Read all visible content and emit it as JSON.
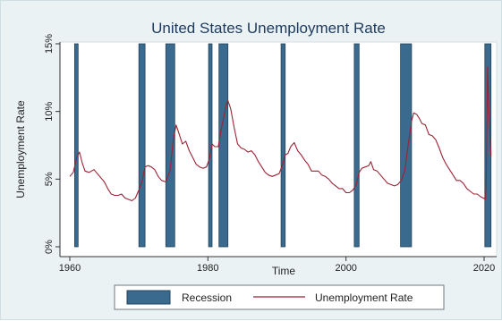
{
  "chart_data": {
    "type": "line",
    "title": "United States Unemployment Rate",
    "xlabel": "Time",
    "ylabel": "Unemployment Rate",
    "xlim": [
      1960,
      2021
    ],
    "ylim": [
      0,
      15
    ],
    "x_ticks": [
      1960,
      1980,
      2000,
      2020
    ],
    "x_tick_labels": [
      "1960",
      "1980",
      "2000",
      "2020"
    ],
    "y_ticks": [
      0,
      5,
      10,
      15
    ],
    "y_tick_labels": [
      "0%",
      "5%",
      "10%",
      "15%"
    ],
    "grid": false,
    "legend_position": "bottom",
    "legend": [
      {
        "label": "Recession",
        "type": "bar",
        "color": "#3a6a8e"
      },
      {
        "label": "Unemployment Rate",
        "type": "line",
        "color": "#9b2335"
      }
    ],
    "recessions": [
      {
        "start": 1960.7,
        "end": 1961.2
      },
      {
        "start": 1970.0,
        "end": 1970.9
      },
      {
        "start": 1973.9,
        "end": 1975.2
      },
      {
        "start": 1980.1,
        "end": 1980.6
      },
      {
        "start": 1981.6,
        "end": 1982.9
      },
      {
        "start": 1990.6,
        "end": 1991.2
      },
      {
        "start": 2001.2,
        "end": 2001.9
      },
      {
        "start": 2007.9,
        "end": 2009.5
      },
      {
        "start": 2020.1,
        "end": 2021.0
      }
    ],
    "series": [
      {
        "name": "Unemployment Rate",
        "color": "#9b2335",
        "x": [
          1960.0,
          1960.5,
          1961.0,
          1961.4,
          1961.8,
          1962.2,
          1962.8,
          1963.5,
          1964.0,
          1964.5,
          1965.0,
          1965.5,
          1966.0,
          1966.5,
          1967.0,
          1967.5,
          1968.0,
          1968.5,
          1969.0,
          1969.5,
          1970.0,
          1970.5,
          1970.9,
          1971.3,
          1971.8,
          1972.3,
          1972.8,
          1973.3,
          1973.9,
          1974.5,
          1975.0,
          1975.4,
          1975.8,
          1976.3,
          1976.8,
          1977.3,
          1977.8,
          1978.3,
          1978.8,
          1979.3,
          1979.8,
          1980.2,
          1980.6,
          1981.0,
          1981.5,
          1981.9,
          1982.3,
          1982.7,
          1982.9,
          1983.3,
          1983.8,
          1984.3,
          1984.8,
          1985.3,
          1985.8,
          1986.3,
          1986.8,
          1987.3,
          1987.8,
          1988.3,
          1988.8,
          1989.3,
          1989.8,
          1990.3,
          1990.7,
          1991.2,
          1991.6,
          1992.0,
          1992.5,
          1993.0,
          1993.5,
          1994.0,
          1994.5,
          1995.0,
          1995.5,
          1996.0,
          1996.5,
          1997.0,
          1997.5,
          1998.0,
          1998.5,
          1999.0,
          1999.5,
          2000.0,
          2000.5,
          2001.0,
          2001.5,
          2001.9,
          2002.3,
          2002.8,
          2003.3,
          2003.6,
          2004.0,
          2004.5,
          2005.0,
          2005.5,
          2006.0,
          2006.5,
          2007.0,
          2007.5,
          2008.0,
          2008.5,
          2009.0,
          2009.5,
          2009.8,
          2010.2,
          2010.6,
          2011.0,
          2011.5,
          2012.0,
          2012.5,
          2013.0,
          2013.5,
          2014.0,
          2014.5,
          2015.0,
          2015.5,
          2016.0,
          2016.5,
          2017.0,
          2017.5,
          2018.0,
          2018.5,
          2019.0,
          2019.5,
          2019.9,
          2020.2,
          2020.3,
          2020.5,
          2020.7,
          2021.0
        ],
        "values": [
          5.2,
          5.5,
          6.6,
          7.0,
          6.2,
          5.6,
          5.5,
          5.7,
          5.4,
          5.1,
          4.8,
          4.3,
          3.9,
          3.8,
          3.8,
          3.9,
          3.6,
          3.5,
          3.4,
          3.6,
          4.2,
          4.9,
          5.9,
          6.0,
          5.9,
          5.7,
          5.2,
          4.9,
          4.8,
          5.6,
          8.0,
          9.0,
          8.4,
          7.6,
          7.8,
          7.1,
          6.6,
          6.1,
          5.9,
          5.8,
          5.9,
          6.5,
          7.6,
          7.4,
          7.4,
          8.6,
          9.6,
          10.6,
          10.8,
          10.2,
          8.8,
          7.6,
          7.3,
          7.2,
          7.0,
          7.1,
          6.8,
          6.3,
          5.9,
          5.5,
          5.3,
          5.2,
          5.3,
          5.4,
          5.9,
          6.8,
          6.9,
          7.4,
          7.7,
          7.1,
          6.8,
          6.4,
          6.1,
          5.6,
          5.6,
          5.6,
          5.3,
          5.2,
          5.0,
          4.7,
          4.5,
          4.3,
          4.3,
          4.0,
          4.0,
          4.2,
          4.6,
          5.5,
          5.8,
          5.9,
          6.0,
          6.3,
          5.7,
          5.6,
          5.3,
          5.0,
          4.7,
          4.6,
          4.5,
          4.6,
          4.9,
          5.6,
          7.5,
          9.3,
          9.9,
          9.8,
          9.5,
          9.1,
          9.0,
          8.3,
          8.2,
          7.9,
          7.3,
          6.6,
          6.1,
          5.7,
          5.3,
          4.9,
          4.9,
          4.7,
          4.3,
          4.1,
          3.9,
          3.9,
          3.7,
          3.6,
          3.5,
          4.4,
          13.3,
          10.0,
          6.7
        ]
      }
    ]
  }
}
